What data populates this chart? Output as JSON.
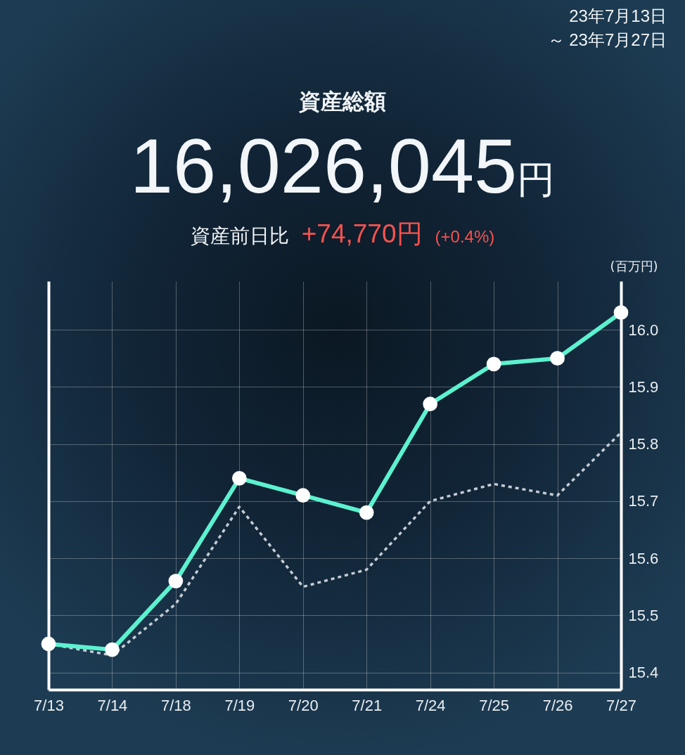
{
  "chart_data": {
    "type": "line",
    "title": "資産総額",
    "ylabel": "(百万円)",
    "categories": [
      "7/13",
      "7/14",
      "7/18",
      "7/19",
      "7/20",
      "7/21",
      "7/24",
      "7/25",
      "7/26",
      "7/27"
    ],
    "series": [
      {
        "color": "#5cf2cf",
        "marker": "circle",
        "line_style": "solid",
        "values": [
          15.45,
          15.44,
          15.56,
          15.74,
          15.71,
          15.68,
          15.87,
          15.94,
          15.95,
          16.03
        ]
      },
      {
        "color": "#c5ccd4",
        "line_style": "dotted",
        "values": [
          15.45,
          15.43,
          15.52,
          15.69,
          15.55,
          15.58,
          15.7,
          15.73,
          15.71,
          15.82
        ]
      }
    ],
    "ylim": [
      15.37,
      16.085
    ],
    "yticks": [
      15.4,
      15.5,
      15.6,
      15.7,
      15.8,
      15.9,
      {
        "value": 16,
        "label": "16.0"
      }
    ],
    "grid": true,
    "annotations": [
      "23年7月13日",
      "～ 23年7月27日",
      "16,026,045円",
      "資産前日比",
      "+74,770円",
      "(+0.4%)"
    ]
  }
}
